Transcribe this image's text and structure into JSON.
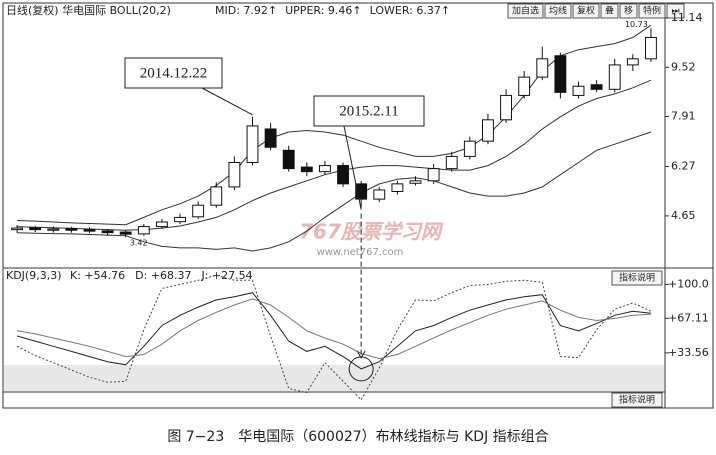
{
  "chart_data": [
    {
      "type": "candlestick",
      "title": "日线(复权)  华电国际 BOLL(20,2)",
      "buttons": [
        "加自选",
        "均线",
        "复权",
        "叠",
        "移",
        "特例",
        "⏭"
      ],
      "open": [
        4.2,
        4.26,
        4.18,
        4.24,
        4.2,
        4.16,
        4.12,
        4.06,
        4.3,
        4.46,
        4.62,
        5.0,
        5.6,
        6.4,
        7.5,
        6.8,
        6.25,
        6.1,
        6.3,
        5.7,
        5.2,
        5.45,
        5.72,
        5.8,
        6.2,
        6.6,
        7.1,
        7.8,
        8.6,
        9.2,
        9.9,
        8.6,
        8.95,
        8.8,
        9.6,
        9.8
      ],
      "high": [
        4.35,
        4.32,
        4.3,
        4.3,
        4.28,
        4.22,
        4.18,
        4.38,
        4.55,
        4.72,
        5.12,
        5.75,
        6.6,
        7.9,
        7.7,
        6.95,
        6.4,
        6.45,
        6.4,
        5.8,
        5.6,
        5.8,
        5.95,
        6.35,
        6.75,
        7.25,
        8.0,
        8.8,
        9.4,
        10.2,
        10.0,
        9.05,
        9.1,
        9.8,
        9.95,
        10.8
      ],
      "low": [
        4.1,
        4.12,
        4.1,
        4.1,
        4.08,
        4.0,
        3.95,
        4.0,
        4.22,
        4.38,
        4.55,
        4.92,
        5.5,
        6.3,
        6.8,
        6.1,
        5.95,
        6.0,
        5.6,
        4.92,
        5.1,
        5.35,
        5.65,
        5.7,
        6.1,
        6.5,
        7.0,
        7.7,
        8.5,
        9.1,
        8.5,
        8.5,
        8.7,
        8.7,
        9.4,
        9.7
      ],
      "close": [
        4.25,
        4.2,
        4.22,
        4.18,
        4.15,
        4.1,
        4.05,
        4.3,
        4.45,
        4.6,
        5.0,
        5.6,
        6.4,
        7.6,
        6.9,
        6.2,
        6.1,
        6.3,
        5.7,
        5.2,
        5.5,
        5.7,
        5.8,
        6.2,
        6.6,
        7.1,
        7.8,
        8.6,
        9.2,
        9.8,
        8.7,
        8.9,
        8.8,
        9.6,
        9.8,
        10.5
      ],
      "series": [
        {
          "name": "MID: 7.92↑",
          "color": "#333333",
          "values": [
            4.3,
            4.28,
            4.26,
            4.24,
            4.22,
            4.2,
            4.18,
            4.2,
            4.25,
            4.32,
            4.45,
            4.6,
            4.85,
            5.15,
            5.4,
            5.6,
            5.8,
            6.0,
            6.15,
            6.25,
            6.3,
            6.3,
            6.25,
            6.2,
            6.15,
            6.15,
            6.3,
            6.6,
            7.0,
            7.5,
            7.9,
            8.25,
            8.5,
            8.65,
            8.85,
            9.1
          ]
        },
        {
          "name": "UPPER: 9.46↑",
          "color": "#333333",
          "values": [
            4.5,
            4.48,
            4.45,
            4.42,
            4.4,
            4.38,
            4.36,
            4.6,
            4.85,
            5.05,
            5.3,
            5.65,
            6.1,
            6.8,
            7.2,
            7.4,
            7.45,
            7.4,
            7.3,
            7.1,
            6.9,
            6.75,
            6.6,
            6.6,
            6.7,
            6.9,
            7.3,
            7.9,
            8.6,
            9.4,
            9.9,
            10.1,
            10.2,
            10.3,
            10.5,
            10.9
          ]
        },
        {
          "name": "LOWER: 6.37↑",
          "color": "#333333",
          "values": [
            4.1,
            4.08,
            4.07,
            4.06,
            4.04,
            4.02,
            4.0,
            3.8,
            3.65,
            3.6,
            3.6,
            3.55,
            3.6,
            3.5,
            3.6,
            3.8,
            4.15,
            4.6,
            5.0,
            5.4,
            5.7,
            5.85,
            5.9,
            5.8,
            5.6,
            5.4,
            5.3,
            5.3,
            5.4,
            5.6,
            6.0,
            6.4,
            6.8,
            7.0,
            7.2,
            7.4
          ]
        }
      ],
      "ylim": [
        3.04,
        11.4
      ],
      "yticks": [
        11.14,
        9.52,
        7.91,
        6.27,
        4.65
      ],
      "annotations": [
        "2014.12.22",
        "2015.2.11"
      ],
      "small_labels": [
        "10.73",
        "3.42"
      ],
      "watermark": [
        "767股票学习网",
        "www.net767.com"
      ]
    },
    {
      "type": "line",
      "title": "KDJ(9,3,3)",
      "button": "指标说明",
      "series": [
        {
          "name": "K: +54.76",
          "color": "#222222",
          "style": "solid",
          "values": [
            50,
            45,
            40,
            35,
            30,
            25,
            22,
            40,
            60,
            70,
            78,
            85,
            88,
            92,
            70,
            45,
            35,
            40,
            30,
            18,
            25,
            40,
            55,
            60,
            68,
            75,
            80,
            85,
            88,
            90,
            60,
            55,
            62,
            70,
            74,
            72
          ]
        },
        {
          "name": "D: +68.37",
          "color": "#777777",
          "style": "solid",
          "values": [
            55,
            52,
            48,
            44,
            40,
            35,
            30,
            32,
            42,
            55,
            65,
            73,
            80,
            86,
            80,
            68,
            55,
            48,
            42,
            33,
            28,
            32,
            40,
            48,
            56,
            63,
            70,
            76,
            80,
            84,
            75,
            68,
            65,
            67,
            70,
            71
          ]
        },
        {
          "name": "J: +27.54",
          "color": "#444444",
          "style": "dotted",
          "values": [
            40,
            31,
            24,
            17,
            10,
            5,
            6,
            56,
            96,
            100,
            104,
            109,
            104,
            104,
            50,
            -1,
            -5,
            24,
            6,
            -12,
            19,
            56,
            85,
            84,
            92,
            99,
            100,
            103,
            104,
            102,
            30,
            29,
            56,
            76,
            82,
            74
          ]
        }
      ],
      "ylim": [
        -17,
        114
      ],
      "yticks": [
        {
          "value": 100,
          "label": "+100.0"
        },
        {
          "value": 67.11,
          "label": "+67.11"
        },
        {
          "value": 33.56,
          "label": "+33.56"
        }
      ],
      "bottom_button": "指标说明"
    }
  ],
  "caption": "图 7−23　华电国际（600027）布林线指标与 KDJ 指标组合"
}
